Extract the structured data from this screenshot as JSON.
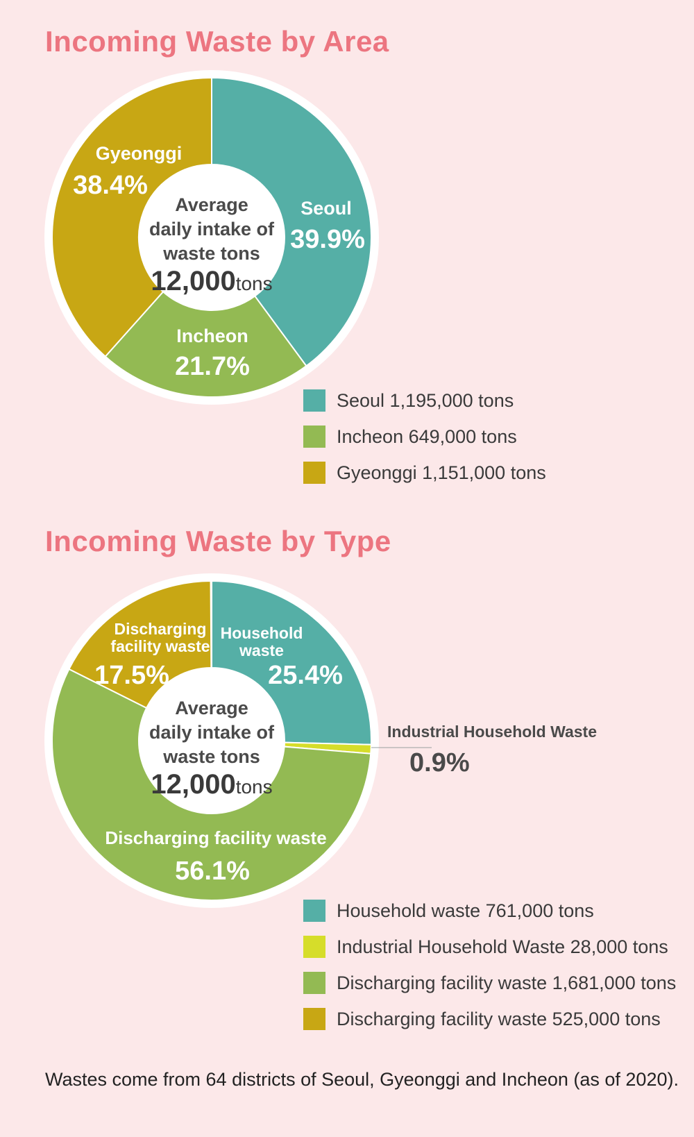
{
  "chart_data": [
    {
      "type": "pie",
      "title": "Incoming Waste by Area",
      "center": {
        "line1": "Average",
        "line2": "daily intake of",
        "line3": "waste tons",
        "value": "12,000",
        "unit": "tons"
      },
      "slices": [
        {
          "label": "Seoul",
          "percent": 39.9,
          "percent_label": "39.9%",
          "color": "#55afa6",
          "legend": "Seoul  1,195,000 tons"
        },
        {
          "label": "Incheon",
          "percent": 21.7,
          "percent_label": "21.7%",
          "color": "#93ba53",
          "legend": "Incheon  649,000 tons"
        },
        {
          "label": "Gyeonggi",
          "percent": 38.4,
          "percent_label": "38.4%",
          "color": "#c8a714",
          "legend": "Gyeonggi  1,151,000 tons"
        }
      ]
    },
    {
      "type": "pie",
      "title": "Incoming Waste by Type",
      "center": {
        "line1": "Average",
        "line2": "daily intake of",
        "line3": "waste tons",
        "value": "12,000",
        "unit": "tons"
      },
      "slices": [
        {
          "label": "Household waste",
          "label_lines": [
            "Household",
            "waste"
          ],
          "percent": 25.4,
          "percent_label": "25.4%",
          "color": "#55afa6",
          "legend": "Household waste 761,000 tons"
        },
        {
          "label": "Industrial Household Waste",
          "label_lines": [
            "Industrial Household Waste"
          ],
          "percent": 0.9,
          "percent_label": "0.9%",
          "color": "#d6dd2a",
          "legend": "Industrial Household Waste 28,000 tons"
        },
        {
          "label": "Discharging facility waste",
          "label_lines": [
            "Discharging facility waste"
          ],
          "percent": 56.1,
          "percent_label": "56.1%",
          "color": "#93ba53",
          "legend": "Discharging facility waste 1,681,000 tons"
        },
        {
          "label": "Discharging facility waste",
          "label_lines": [
            "Discharging",
            "facility waste"
          ],
          "percent": 17.5,
          "percent_label": "17.5%",
          "color": "#c8a714",
          "legend": "Discharging facility waste 525,000 tons"
        }
      ]
    }
  ],
  "footnote": "Wastes come from 64 districts of Seoul, Gyeonggi and Incheon (as of 2020)."
}
